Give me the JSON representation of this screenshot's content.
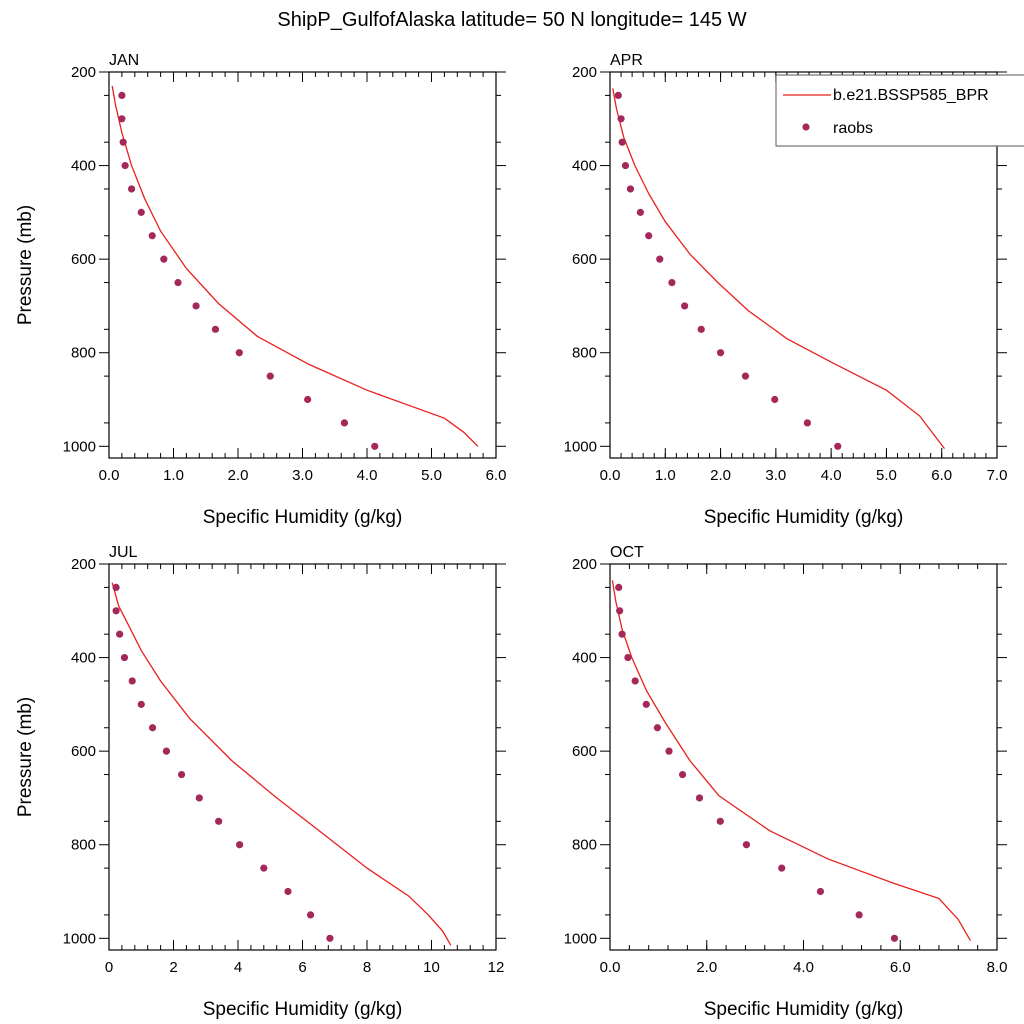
{
  "title": "ShipP_GulfofAlaska  latitude= 50 N longitude= 145 W",
  "legend": {
    "model_label": "b.e21.BSSP585_BPR",
    "obs_label": "raobs",
    "model_color": "#e8201e",
    "obs_color": "#a5285a"
  },
  "chart_data": [
    {
      "type": "line",
      "panel": "JAN",
      "xlabel": "Specific Humidity (g/kg)",
      "ylabel": "Pressure (mb)",
      "xlim": [
        0,
        6
      ],
      "xticks": [
        0,
        1,
        2,
        3,
        4,
        5,
        6
      ],
      "xtick_labels": [
        "0.0",
        "1.0",
        "2.0",
        "3.0",
        "4.0",
        "5.0",
        "6.0"
      ],
      "ylim": [
        200,
        1025
      ],
      "yticks": [
        200,
        400,
        600,
        800,
        1000
      ],
      "ytick_labels": [
        "200",
        "400",
        "600",
        "800",
        "1000"
      ],
      "y_reversed": true,
      "model": {
        "x": [
          0.05,
          0.1,
          0.2,
          0.35,
          0.55,
          0.8,
          1.2,
          1.7,
          2.3,
          3.1,
          4.0,
          5.2,
          5.5,
          5.72
        ],
        "y": [
          230,
          270,
          330,
          400,
          470,
          540,
          620,
          695,
          765,
          825,
          880,
          940,
          970,
          1000
        ]
      },
      "obs": {
        "x": [
          0.2,
          0.2,
          0.22,
          0.25,
          0.35,
          0.5,
          0.67,
          0.85,
          1.07,
          1.35,
          1.65,
          2.02,
          2.5,
          3.08,
          3.65,
          4.12
        ],
        "y": [
          250,
          300,
          350,
          400,
          450,
          500,
          550,
          600,
          650,
          700,
          750,
          800,
          850,
          900,
          950,
          1000
        ]
      }
    },
    {
      "type": "line",
      "panel": "APR",
      "xlabel": "Specific Humidity (g/kg)",
      "ylabel": "",
      "xlim": [
        0,
        7
      ],
      "xticks": [
        0,
        1,
        2,
        3,
        4,
        5,
        6,
        7
      ],
      "xtick_labels": [
        "0.0",
        "1.0",
        "2.0",
        "3.0",
        "4.0",
        "5.0",
        "6.0",
        "7.0"
      ],
      "ylim": [
        200,
        1025
      ],
      "yticks": [
        200,
        400,
        600,
        800,
        1000
      ],
      "ytick_labels": [
        "200",
        "400",
        "600",
        "800",
        "1000"
      ],
      "y_reversed": true,
      "model": {
        "x": [
          0.05,
          0.12,
          0.25,
          0.45,
          0.7,
          1.0,
          1.45,
          1.95,
          2.5,
          3.2,
          4.0,
          5.0,
          5.6,
          6.05
        ],
        "y": [
          235,
          280,
          340,
          400,
          460,
          520,
          590,
          650,
          710,
          770,
          820,
          880,
          935,
          1005
        ]
      },
      "obs": {
        "x": [
          0.15,
          0.2,
          0.22,
          0.28,
          0.37,
          0.55,
          0.7,
          0.9,
          1.12,
          1.35,
          1.65,
          2.0,
          2.45,
          2.98,
          3.57,
          4.12
        ],
        "y": [
          250,
          300,
          350,
          400,
          450,
          500,
          550,
          600,
          650,
          700,
          750,
          800,
          850,
          900,
          950,
          1000
        ]
      }
    },
    {
      "type": "line",
      "panel": "JUL",
      "xlabel": "Specific Humidity (g/kg)",
      "ylabel": "Pressure (mb)",
      "xlim": [
        0,
        12
      ],
      "xticks": [
        0,
        2,
        4,
        6,
        8,
        10,
        12
      ],
      "xtick_labels": [
        "0",
        "2",
        "4",
        "6",
        "8",
        "10",
        "12"
      ],
      "ylim": [
        200,
        1025
      ],
      "yticks": [
        200,
        400,
        600,
        800,
        1000
      ],
      "ytick_labels": [
        "200",
        "400",
        "600",
        "800",
        "1000"
      ],
      "y_reversed": true,
      "model": {
        "x": [
          0.1,
          0.3,
          0.6,
          1.0,
          1.6,
          2.5,
          3.8,
          5.2,
          6.7,
          8.0,
          9.3,
          9.9,
          10.35,
          10.6
        ],
        "y": [
          240,
          290,
          330,
          385,
          450,
          530,
          620,
          700,
          780,
          850,
          910,
          950,
          985,
          1015
        ]
      },
      "obs": {
        "x": [
          0.22,
          0.22,
          0.33,
          0.48,
          0.72,
          1.0,
          1.35,
          1.78,
          2.25,
          2.8,
          3.4,
          4.05,
          4.8,
          5.55,
          6.25,
          6.85
        ],
        "y": [
          250,
          300,
          350,
          400,
          450,
          500,
          550,
          600,
          650,
          700,
          750,
          800,
          850,
          900,
          950,
          1000
        ]
      }
    },
    {
      "type": "line",
      "panel": "OCT",
      "xlabel": "Specific Humidity (g/kg)",
      "ylabel": "",
      "xlim": [
        0,
        8
      ],
      "xticks": [
        0,
        2,
        4,
        6,
        8
      ],
      "xtick_labels": [
        "0.0",
        "2.0",
        "4.0",
        "6.0",
        "8.0"
      ],
      "ylim": [
        200,
        1025
      ],
      "yticks": [
        200,
        400,
        600,
        800,
        1000
      ],
      "ytick_labels": [
        "200",
        "400",
        "600",
        "800",
        "1000"
      ],
      "y_reversed": true,
      "model": {
        "x": [
          0.05,
          0.12,
          0.25,
          0.45,
          0.75,
          1.15,
          1.65,
          2.25,
          3.3,
          4.5,
          5.8,
          6.8,
          7.2,
          7.45
        ],
        "y": [
          235,
          280,
          340,
          400,
          470,
          540,
          620,
          695,
          770,
          830,
          880,
          915,
          960,
          1005
        ]
      },
      "obs": {
        "x": [
          0.18,
          0.2,
          0.25,
          0.37,
          0.52,
          0.75,
          0.98,
          1.22,
          1.5,
          1.85,
          2.28,
          2.82,
          3.55,
          4.35,
          5.15,
          5.88
        ],
        "y": [
          250,
          300,
          350,
          400,
          450,
          500,
          550,
          600,
          650,
          700,
          750,
          800,
          850,
          900,
          950,
          1000
        ]
      }
    }
  ]
}
